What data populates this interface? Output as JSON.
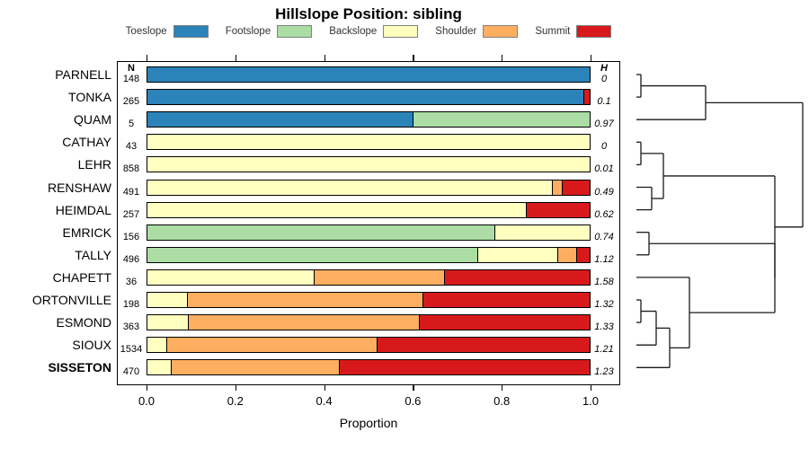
{
  "title": "Hillslope Position: sibling",
  "legend": {
    "items": [
      {
        "label": "Toeslope",
        "color": "#2b83ba"
      },
      {
        "label": "Footslope",
        "color": "#abdda4"
      },
      {
        "label": "Backslope",
        "color": "#ffffbf"
      },
      {
        "label": "Shoulder",
        "color": "#fdae61"
      },
      {
        "label": "Summit",
        "color": "#d7191c"
      }
    ]
  },
  "columns": {
    "n_header": "N",
    "h_header": "H"
  },
  "x_axis": {
    "label": "Proportion",
    "ticks": [
      "0.0",
      "0.2",
      "0.4",
      "0.6",
      "0.8",
      "1.0"
    ],
    "tick_values": [
      0,
      0.2,
      0.4,
      0.6,
      0.8,
      1.0
    ],
    "range": [
      0,
      1
    ]
  },
  "chart_data": {
    "type": "bar",
    "orientation": "horizontal-stacked",
    "title": "Hillslope Position: sibling",
    "xlabel": "Proportion",
    "xlim": [
      0,
      1
    ],
    "series_order": [
      "Toeslope",
      "Footslope",
      "Backslope",
      "Shoulder",
      "Summit"
    ],
    "rows": [
      {
        "name": "PARNELL",
        "n": "148",
        "h": "0",
        "values": [
          1.0,
          0,
          0,
          0,
          0
        ]
      },
      {
        "name": "TONKA",
        "n": "265",
        "h": "0.1",
        "values": [
          0.985,
          0,
          0,
          0,
          0.015
        ]
      },
      {
        "name": "QUAM",
        "n": "5",
        "h": "0.97",
        "values": [
          0.6,
          0.4,
          0,
          0,
          0
        ]
      },
      {
        "name": "CATHAY",
        "n": "43",
        "h": "0",
        "values": [
          0,
          0,
          1.0,
          0,
          0
        ]
      },
      {
        "name": "LEHR",
        "n": "858",
        "h": "0.01",
        "values": [
          0,
          0,
          1.0,
          0,
          0
        ]
      },
      {
        "name": "RENSHAW",
        "n": "491",
        "h": "0.49",
        "values": [
          0,
          0,
          0.915,
          0.022,
          0.063
        ]
      },
      {
        "name": "HEIMDAL",
        "n": "257",
        "h": "0.62",
        "values": [
          0,
          0,
          0.856,
          0,
          0.144
        ]
      },
      {
        "name": "EMRICK",
        "n": "156",
        "h": "0.74",
        "values": [
          0,
          0.785,
          0.215,
          0,
          0
        ]
      },
      {
        "name": "TALLY",
        "n": "496",
        "h": "1.12",
        "values": [
          0,
          0.746,
          0.181,
          0.043,
          0.03
        ]
      },
      {
        "name": "CHAPETT",
        "n": "36",
        "h": "1.58",
        "values": [
          0,
          0,
          0.376,
          0.294,
          0.33
        ]
      },
      {
        "name": "ORTONVILLE",
        "n": "198",
        "h": "1.32",
        "values": [
          0,
          0,
          0.089,
          0.532,
          0.379
        ]
      },
      {
        "name": "ESMOND",
        "n": "363",
        "h": "1.33",
        "values": [
          0,
          0,
          0.091,
          0.522,
          0.387
        ]
      },
      {
        "name": "SIOUX",
        "n": "1534",
        "h": "1.21",
        "values": [
          0,
          0,
          0.043,
          0.475,
          0.482
        ]
      },
      {
        "name": "SISSETON",
        "n": "470",
        "h": "1.23",
        "values": [
          0,
          0,
          0.053,
          0.38,
          0.567
        ],
        "bold": true
      }
    ],
    "dendrogram": {
      "x": 893,
      "children": [
        {
          "x": 785,
          "children": [
            {
              "x": 713,
              "children": [
                {
                  "leaf": 0
                },
                {
                  "leaf": 1
                }
              ]
            },
            {
              "leaf": 2
            }
          ]
        },
        {
          "x": 862,
          "children": [
            {
              "x": 738,
              "children": [
                {
                  "x": 713,
                  "children": [
                    {
                      "leaf": 3
                    },
                    {
                      "leaf": 4
                    }
                  ]
                },
                {
                  "x": 725,
                  "children": [
                    {
                      "leaf": 5
                    },
                    {
                      "leaf": 6
                    }
                  ]
                }
              ]
            },
            {
              "x": 862,
              "children": [
                {
                  "x": 722,
                  "children": [
                    {
                      "leaf": 7
                    },
                    {
                      "leaf": 8
                    }
                  ]
                },
                {
                  "x": 767,
                  "children": [
                    {
                      "leaf": 9
                    },
                    {
                      "x": 745,
                      "children": [
                        {
                          "x": 730,
                          "children": [
                            {
                              "x": 713,
                              "children": [
                                {
                                  "leaf": 10
                                },
                                {
                                  "leaf": 11
                                }
                              ]
                            },
                            {
                              "leaf": 12
                            }
                          ]
                        },
                        {
                          "leaf": 13
                        }
                      ]
                    }
                  ]
                }
              ]
            }
          ]
        }
      ]
    }
  }
}
